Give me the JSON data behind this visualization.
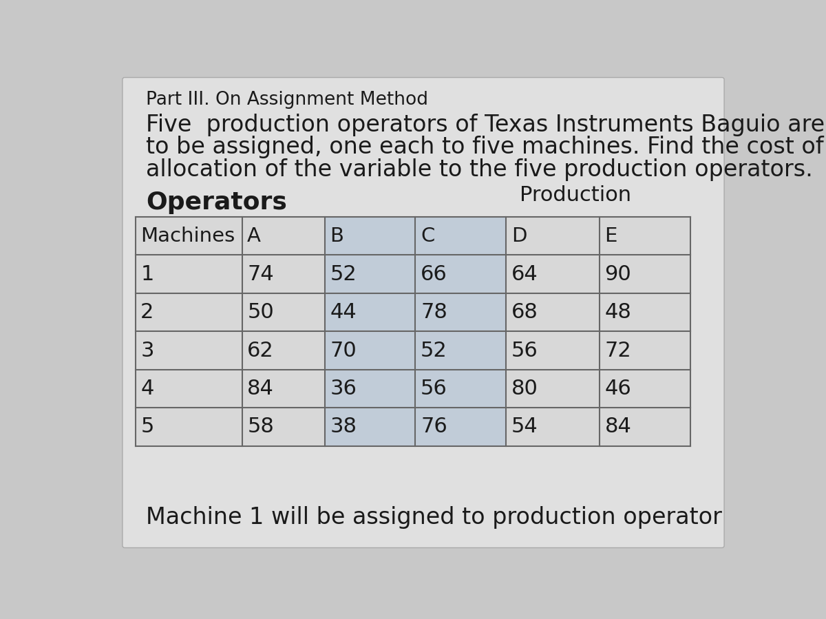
{
  "title": "Part III. On Assignment Method",
  "line1": "Five  production operators of Texas Instruments Baguio are",
  "line2": "to be assigned, one each to five machines. Find the cost of",
  "line3": "allocation of the variable to the five production operators.",
  "label_production": "Production",
  "label_operators": "Operators",
  "col_headers": [
    "Machines",
    "A",
    "B",
    "C",
    "D",
    "E"
  ],
  "row_headers": [
    "1",
    "2",
    "3",
    "4",
    "5"
  ],
  "table_data": [
    [
      74,
      52,
      66,
      64,
      90
    ],
    [
      50,
      44,
      78,
      68,
      48
    ],
    [
      62,
      70,
      52,
      56,
      72
    ],
    [
      84,
      36,
      56,
      80,
      46
    ],
    [
      58,
      38,
      76,
      54,
      84
    ]
  ],
  "footer_text": "Machine 1 will be assigned to production operator",
  "bg_color": "#c8c8c8",
  "card_color": "#e0e0e0",
  "text_color": "#1a1a1a",
  "table_line_color": "#666666",
  "highlight_color": "#b8c8d8",
  "table_bg_color": "#d8d8d8"
}
